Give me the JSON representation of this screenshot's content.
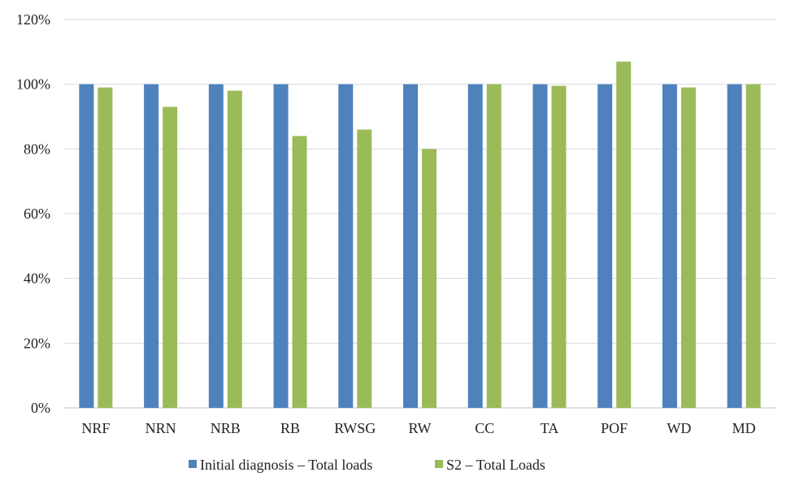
{
  "chart_data": {
    "type": "bar",
    "categories": [
      "NRF",
      "NRN",
      "NRB",
      "RB",
      "RWSG",
      "RW",
      "CC",
      "TA",
      "POF",
      "WD",
      "MD"
    ],
    "series": [
      {
        "name": "Initial diagnosis – Total loads",
        "color": "#4f81bd",
        "values": [
          100,
          100,
          100,
          100,
          100,
          100,
          100,
          100,
          100,
          100,
          100
        ]
      },
      {
        "name": "S2 – Total Loads",
        "color": "#9bbb59",
        "values": [
          99,
          93,
          98,
          84,
          86,
          80,
          100,
          99.5,
          107,
          99,
          100
        ]
      }
    ],
    "y_ticks": [
      "0%",
      "20%",
      "40%",
      "60%",
      "80%",
      "100%",
      "120%"
    ],
    "ylim": [
      0,
      120
    ],
    "y_unit": "%",
    "grid": true,
    "legend_position": "bottom"
  }
}
